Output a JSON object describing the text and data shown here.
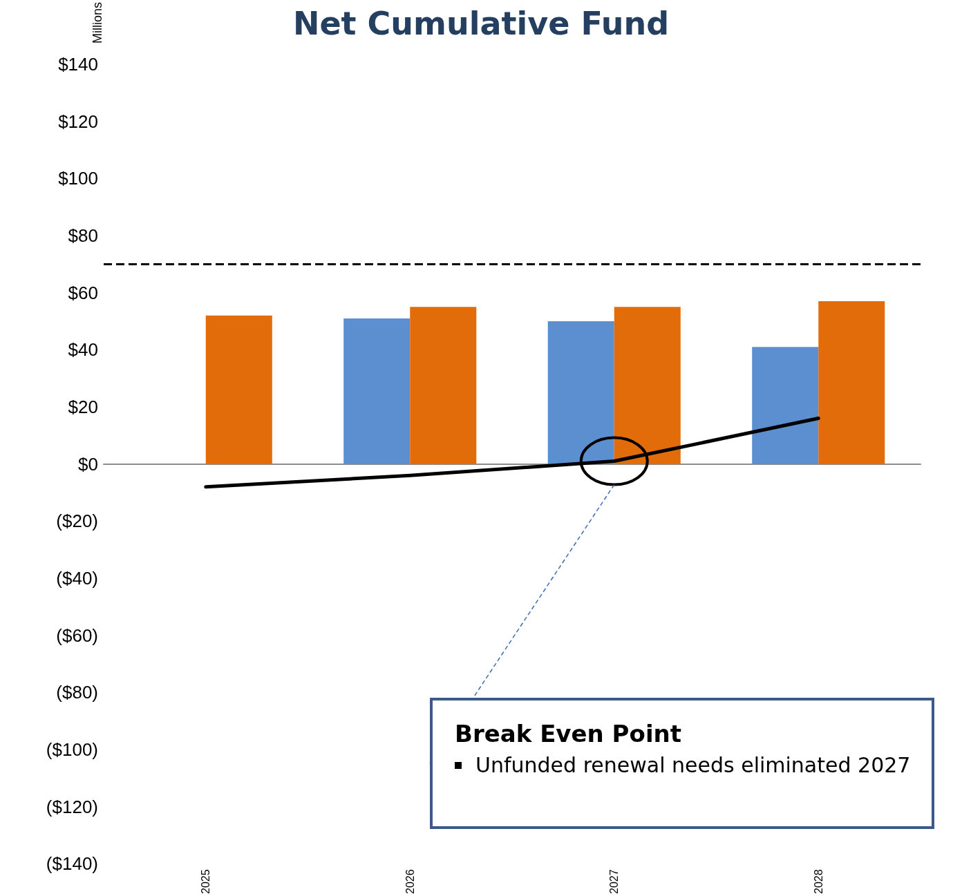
{
  "chart_data": {
    "type": "bar",
    "title": "Net Cumulative Fund",
    "ylabel": "Millions",
    "categories": [
      "2025",
      "2026",
      "2027",
      "2028"
    ],
    "series": [
      {
        "color": "#5b8fd0",
        "values": [
          null,
          51,
          50,
          41
        ]
      },
      {
        "color": "#e36c0a",
        "values": [
          52,
          55,
          55,
          57
        ]
      },
      {
        "type": "line",
        "color": "#000000",
        "values": [
          -8,
          -4,
          1,
          16
        ]
      }
    ],
    "ylim": [
      -140,
      140
    ],
    "yticks": [
      {
        "value": -140,
        "label": "($140)"
      },
      {
        "value": -120,
        "label": "($120)"
      },
      {
        "value": -100,
        "label": "($100)"
      },
      {
        "value": -80,
        "label": "($80)"
      },
      {
        "value": -60,
        "label": "($60)"
      },
      {
        "value": -40,
        "label": "($40)"
      },
      {
        "value": -20,
        "label": "($20)"
      },
      {
        "value": 0,
        "label": "$0"
      },
      {
        "value": 20,
        "label": "$20"
      },
      {
        "value": 40,
        "label": "$40"
      },
      {
        "value": 60,
        "label": "$60"
      },
      {
        "value": 80,
        "label": "$80"
      },
      {
        "value": 100,
        "label": "$100"
      },
      {
        "value": 120,
        "label": "$120"
      },
      {
        "value": 140,
        "label": "$140"
      }
    ],
    "ref_lines": [
      {
        "axis": "y",
        "value": 70,
        "color": "#000000",
        "line_style": "dashed"
      }
    ],
    "annotations": [
      "Break Even Point",
      "Unfunded renewal needs eliminated 2027"
    ],
    "marker": "none"
  }
}
